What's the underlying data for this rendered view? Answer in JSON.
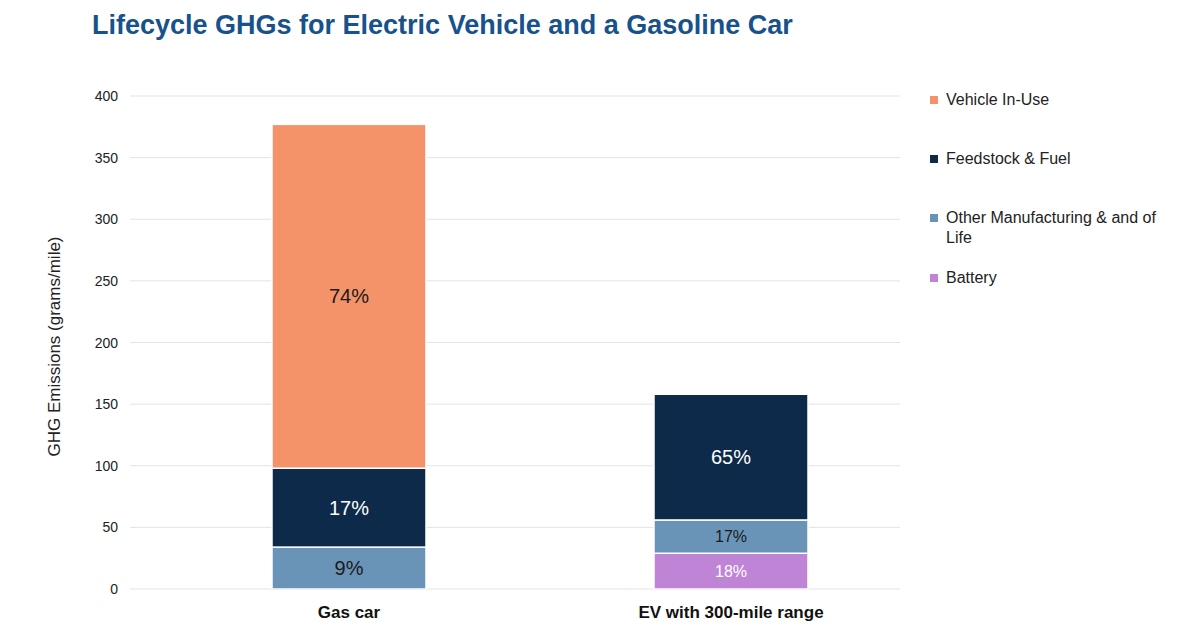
{
  "chart_data": {
    "type": "bar",
    "title": "Lifecycle GHGs for Electric Vehicle and a Gasoline Car",
    "y_label": "GHG Emissions (grams/mile)",
    "categories": [
      "Gas car",
      "EV with 300-mile range"
    ],
    "stacked": true,
    "grid": true,
    "legend": "right",
    "ylim": [
      0,
      400
    ],
    "yticks": [
      0,
      50,
      100,
      150,
      200,
      250,
      300,
      350,
      400
    ],
    "series": [
      {
        "name": "Battery",
        "color": "#c084d6",
        "values": [
          null,
          29
        ],
        "labels": [
          null,
          "18%"
        ]
      },
      {
        "name": "Other Manufacturing & and of Life",
        "color": "#6a93b8",
        "values": [
          34,
          27
        ],
        "labels": [
          "9%",
          "17%"
        ]
      },
      {
        "name": "Feedstock & Fuel",
        "color": "#0d2a4a",
        "values": [
          64,
          102
        ],
        "labels": [
          "17%",
          "65%"
        ]
      },
      {
        "name": "Vehicle In-Use",
        "color": "#f4936a",
        "values": [
          279,
          null
        ],
        "labels": [
          "74%",
          null
        ]
      }
    ]
  }
}
